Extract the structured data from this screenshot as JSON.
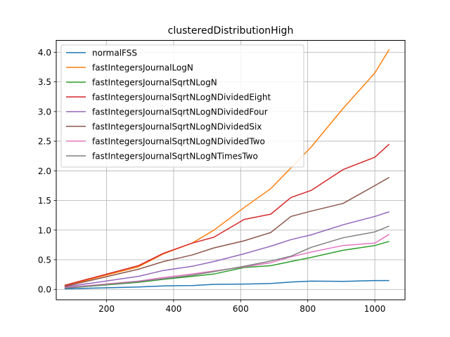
{
  "chart_data": {
    "type": "line",
    "title": "clusteredDistributionHigh",
    "xlabel": "",
    "ylabel": "",
    "xlim": [
      50,
      1090
    ],
    "ylim": [
      -0.175,
      4.2
    ],
    "xticks": [
      200,
      400,
      600,
      800,
      1000
    ],
    "yticks": [
      0.0,
      0.5,
      1.0,
      1.5,
      2.0,
      2.5,
      3.0,
      3.5,
      4.0
    ],
    "xtick_labels": [
      "200",
      "400",
      "600",
      "800",
      "1000"
    ],
    "ytick_labels": [
      "0.0",
      "0.5",
      "1.0",
      "1.5",
      "2.0",
      "2.5",
      "3.0",
      "3.5",
      "4.0"
    ],
    "grid": true,
    "legend_position": "upper-left",
    "x": [
      75,
      295,
      370,
      455,
      520,
      610,
      690,
      750,
      810,
      905,
      1000,
      1043
    ],
    "series": [
      {
        "name": "normalFSS",
        "color": "#1f77b4",
        "values": [
          0.01,
          0.04,
          0.06,
          0.065,
          0.085,
          0.09,
          0.1,
          0.125,
          0.14,
          0.135,
          0.15,
          0.15
        ]
      },
      {
        "name": "fastIntegersJournalLogN",
        "color": "#ff7f0e",
        "values": [
          0.06,
          0.38,
          0.6,
          0.78,
          1.0,
          1.38,
          1.7,
          2.05,
          2.4,
          3.05,
          3.65,
          4.05
        ]
      },
      {
        "name": "fastIntegersJournalSqrtNLogN",
        "color": "#2ca02c",
        "values": [
          0.02,
          0.12,
          0.17,
          0.22,
          0.26,
          0.37,
          0.4,
          0.47,
          0.54,
          0.66,
          0.74,
          0.81
        ]
      },
      {
        "name": "fastIntegersJournalSqrtNLogNDividedEight",
        "color": "#d62728",
        "values": [
          0.07,
          0.4,
          0.61,
          0.78,
          0.88,
          1.18,
          1.27,
          1.55,
          1.67,
          2.02,
          2.23,
          2.45
        ]
      },
      {
        "name": "fastIntegersJournalSqrtNLogNDividedFour",
        "color": "#9467bd",
        "values": [
          0.04,
          0.22,
          0.32,
          0.39,
          0.47,
          0.6,
          0.73,
          0.84,
          0.92,
          1.09,
          1.23,
          1.31
        ]
      },
      {
        "name": "fastIntegersJournalSqrtNLogNDividedSix",
        "color": "#8c564b",
        "values": [
          0.05,
          0.34,
          0.47,
          0.58,
          0.7,
          0.82,
          0.96,
          1.23,
          1.32,
          1.45,
          1.75,
          1.89
        ]
      },
      {
        "name": "fastIntegersJournalSqrtNLogNDividedTwo",
        "color": "#e377c2",
        "values": [
          0.03,
          0.14,
          0.2,
          0.26,
          0.31,
          0.38,
          0.45,
          0.55,
          0.63,
          0.74,
          0.78,
          0.93
        ]
      },
      {
        "name": "fastIntegersJournalSqrtNLogNTimesTwo",
        "color": "#7f7f7f",
        "values": [
          0.02,
          0.13,
          0.18,
          0.24,
          0.3,
          0.39,
          0.48,
          0.56,
          0.71,
          0.87,
          0.97,
          1.07
        ]
      }
    ]
  }
}
